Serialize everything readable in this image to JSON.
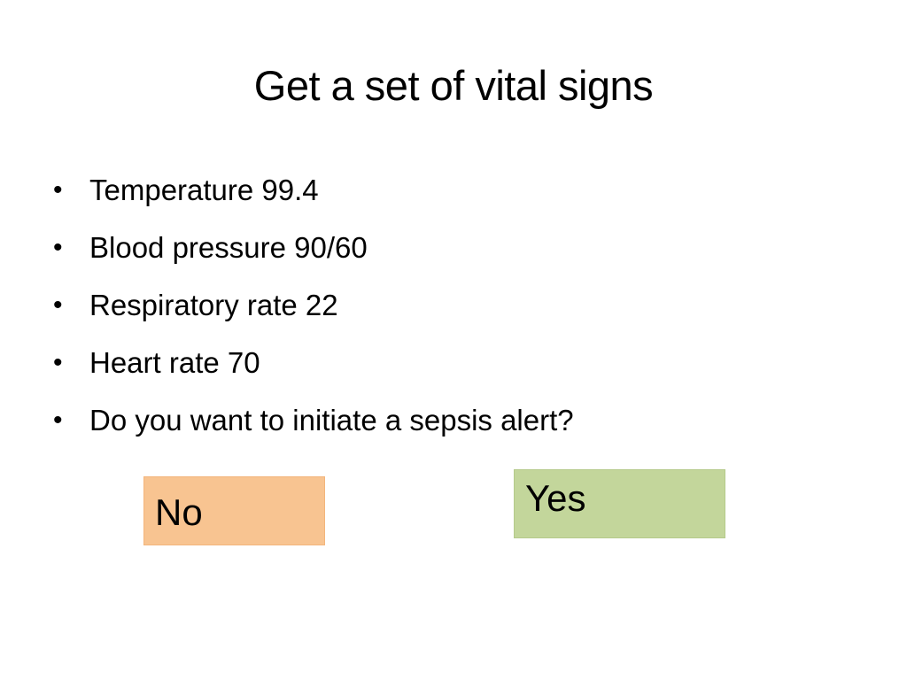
{
  "slide": {
    "title": "Get a set of vital signs",
    "bullet_symbol": "•",
    "bullets": [
      "Temperature 99.4",
      "Blood pressure 90/60",
      "Respiratory rate 22",
      "Heart rate 70",
      "Do you want to initiate a sepsis alert?"
    ]
  },
  "choices": {
    "no_label": "No",
    "yes_label": "Yes",
    "no_color": "#f8c491",
    "yes_color": "#c3d69b"
  }
}
